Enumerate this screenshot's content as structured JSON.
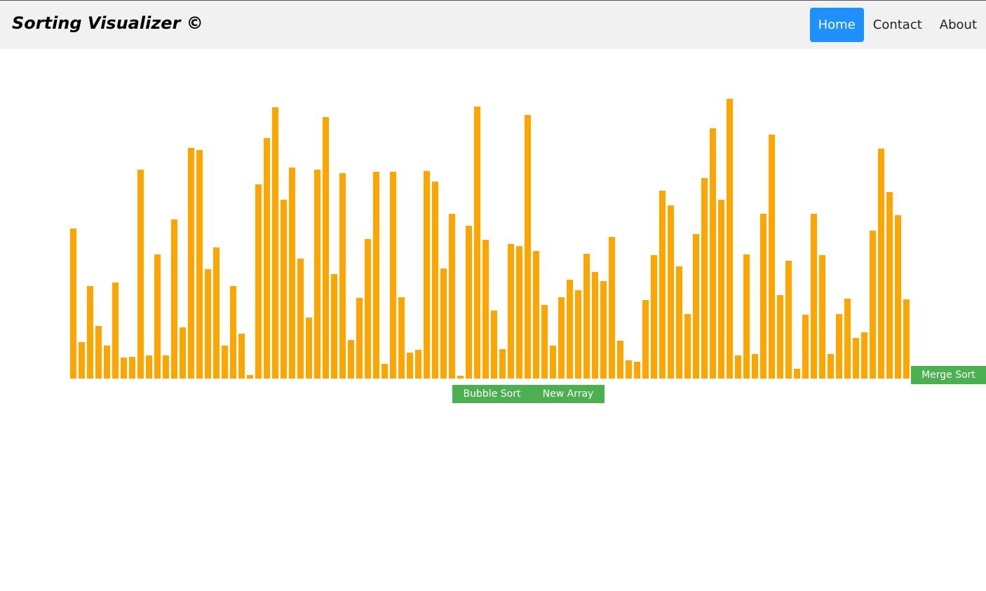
{
  "header": {
    "brand": "Sorting Visualizer ©",
    "nav": [
      {
        "label": "Home",
        "active": true
      },
      {
        "label": "Contact",
        "active": false
      },
      {
        "label": "About",
        "active": false
      }
    ]
  },
  "controls": {
    "bubble_label": "Bubble Sort",
    "new_array_label": "New Array",
    "merge_label": "Merge Sort"
  },
  "colors": {
    "bar": "#ffa500",
    "button": "#4caf50",
    "nav_active": "#1e90ff"
  },
  "array": {
    "max": 400,
    "values": [
      214,
      52,
      132,
      75,
      47,
      137,
      30,
      31,
      298,
      33,
      177,
      33,
      227,
      73,
      329,
      326,
      156,
      187,
      47,
      132,
      64,
      5,
      277,
      343,
      387,
      255,
      301,
      171,
      87,
      298,
      373,
      149,
      293,
      55,
      115,
      199,
      295,
      21,
      295,
      116,
      37,
      41,
      296,
      281,
      157,
      235,
      4,
      218,
      388,
      198,
      97,
      42,
      192,
      189,
      376,
      182,
      105,
      47,
      116,
      141,
      126,
      178,
      152,
      139,
      202,
      54,
      26,
      24,
      112,
      176,
      268,
      247,
      160,
      92,
      206,
      286,
      357,
      255,
      399,
      33,
      177,
      35,
      235,
      348,
      119,
      168,
      14,
      91,
      235,
      176,
      35,
      92,
      114,
      58,
      66,
      211,
      328,
      266,
      233,
      113
    ]
  }
}
